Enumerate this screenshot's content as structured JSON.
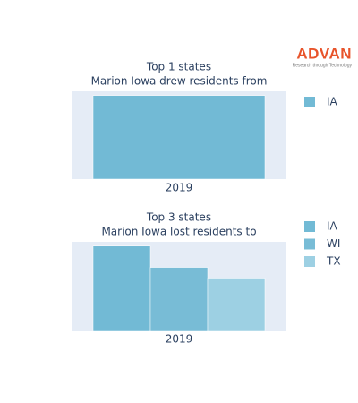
{
  "logo": {
    "name": "ADVAN",
    "tagline": "Research through Technology"
  },
  "chart_data": [
    {
      "type": "bar",
      "title": [
        "Top 1 states",
        "Marion Iowa drew residents from"
      ],
      "categories": [
        "2019"
      ],
      "series": [
        {
          "name": "IA",
          "color": "#72bad5",
          "values": [
            8
          ]
        }
      ]
    },
    {
      "type": "bar",
      "title": [
        "Top 3 states",
        "Marion Iowa lost residents to"
      ],
      "categories": [
        "2019"
      ],
      "series": [
        {
          "name": "IA",
          "color": "#72bad5",
          "values": [
            8
          ]
        },
        {
          "name": "WI",
          "color": "#78bcd6",
          "values": [
            6
          ]
        },
        {
          "name": "TX",
          "color": "#9dd0e3",
          "values": [
            5
          ]
        }
      ]
    }
  ]
}
